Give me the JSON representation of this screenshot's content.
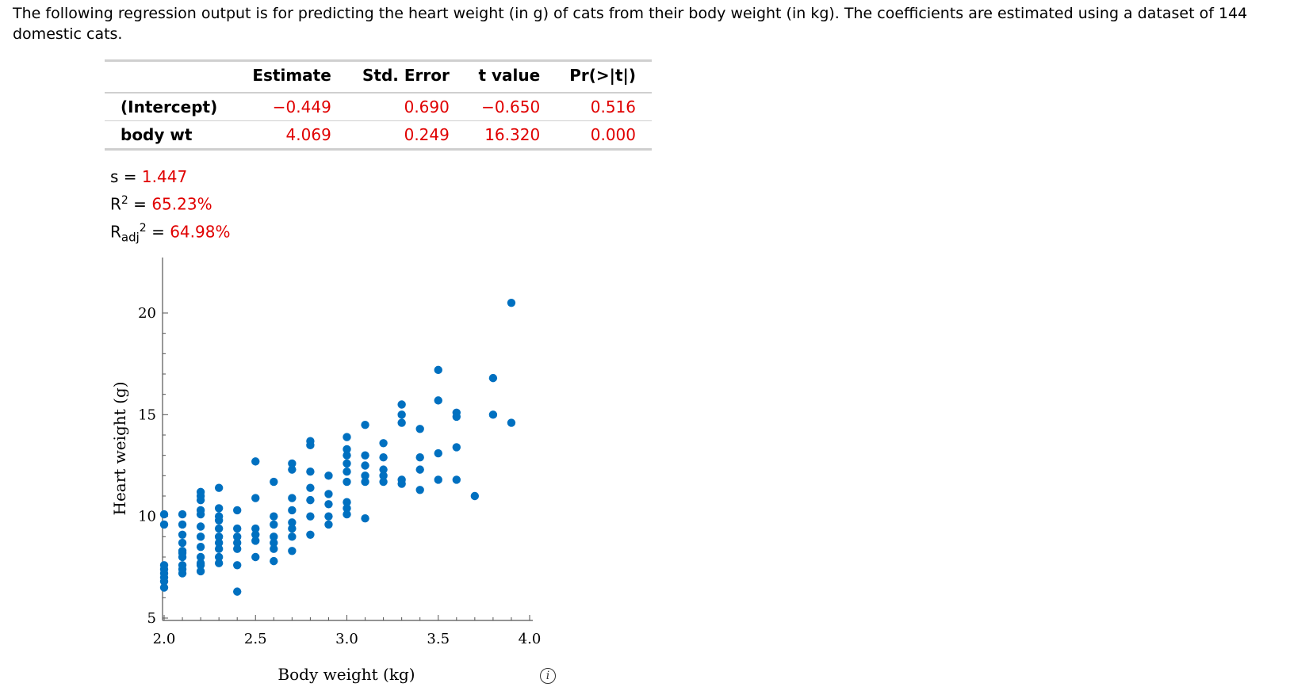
{
  "intro_text": "The following regression output is for predicting the heart weight (in g) of cats from their body weight (in kg). The coefficients are estimated using a dataset of 144 domestic cats.",
  "regression_table": {
    "headers": [
      "",
      "Estimate",
      "Std. Error",
      "t value",
      "Pr(>|t|)"
    ],
    "rows": [
      {
        "label": "(Intercept)",
        "estimate": "−0.449",
        "std_error": "0.690",
        "t_value": "−0.650",
        "p_value": "0.516"
      },
      {
        "label": "body wt",
        "estimate": "4.069",
        "std_error": "0.249",
        "t_value": "16.320",
        "p_value": "0.000"
      }
    ]
  },
  "stats": {
    "s_label": "s = ",
    "s_value": "1.447",
    "r2_label": "R",
    "r2_value": "65.23%",
    "radj_label": "R",
    "radj_sub": "adj",
    "radj_value": "64.98%",
    "equals": " = "
  },
  "colors": {
    "point": "#0070c0",
    "highlight": "#e00000"
  },
  "icon": "info-icon",
  "chart_data": {
    "type": "scatter",
    "xlabel": "Body weight (kg)",
    "ylabel": "Heart weight (g)",
    "xlim": [
      2.0,
      4.0
    ],
    "ylim": [
      5,
      20
    ],
    "xticks": [
      "2.0",
      "2.5",
      "3.0",
      "3.5",
      "4.0"
    ],
    "yticks": [
      "5",
      "10",
      "15",
      "20"
    ],
    "points": [
      [
        2.0,
        7.0
      ],
      [
        2.0,
        7.2
      ],
      [
        2.0,
        7.4
      ],
      [
        2.0,
        6.5
      ],
      [
        2.0,
        6.8
      ],
      [
        2.0,
        7.6
      ],
      [
        2.0,
        9.6
      ],
      [
        2.0,
        10.1
      ],
      [
        2.1,
        7.2
      ],
      [
        2.1,
        7.4
      ],
      [
        2.1,
        7.6
      ],
      [
        2.1,
        8.0
      ],
      [
        2.1,
        8.2
      ],
      [
        2.1,
        8.3
      ],
      [
        2.1,
        8.7
      ],
      [
        2.1,
        9.1
      ],
      [
        2.1,
        9.6
      ],
      [
        2.1,
        10.1
      ],
      [
        2.2,
        7.3
      ],
      [
        2.2,
        7.6
      ],
      [
        2.2,
        7.7
      ],
      [
        2.2,
        8.0
      ],
      [
        2.2,
        8.5
      ],
      [
        2.2,
        9.0
      ],
      [
        2.2,
        9.5
      ],
      [
        2.2,
        10.1
      ],
      [
        2.2,
        10.3
      ],
      [
        2.2,
        10.8
      ],
      [
        2.2,
        11.0
      ],
      [
        2.2,
        11.2
      ],
      [
        2.3,
        7.7
      ],
      [
        2.3,
        8.0
      ],
      [
        2.3,
        8.4
      ],
      [
        2.3,
        8.7
      ],
      [
        2.3,
        9.0
      ],
      [
        2.3,
        9.4
      ],
      [
        2.3,
        9.8
      ],
      [
        2.3,
        10.0
      ],
      [
        2.3,
        10.4
      ],
      [
        2.3,
        11.4
      ],
      [
        2.4,
        6.3
      ],
      [
        2.4,
        7.6
      ],
      [
        2.4,
        8.4
      ],
      [
        2.4,
        8.7
      ],
      [
        2.4,
        9.0
      ],
      [
        2.4,
        9.4
      ],
      [
        2.4,
        10.3
      ],
      [
        2.5,
        8.0
      ],
      [
        2.5,
        8.8
      ],
      [
        2.5,
        9.1
      ],
      [
        2.5,
        9.4
      ],
      [
        2.5,
        10.9
      ],
      [
        2.5,
        12.7
      ],
      [
        2.6,
        7.8
      ],
      [
        2.6,
        8.4
      ],
      [
        2.6,
        8.7
      ],
      [
        2.6,
        9.0
      ],
      [
        2.6,
        9.6
      ],
      [
        2.6,
        10.0
      ],
      [
        2.6,
        11.7
      ],
      [
        2.7,
        8.3
      ],
      [
        2.7,
        9.0
      ],
      [
        2.7,
        9.4
      ],
      [
        2.7,
        9.7
      ],
      [
        2.7,
        10.3
      ],
      [
        2.7,
        10.9
      ],
      [
        2.7,
        12.3
      ],
      [
        2.7,
        12.6
      ],
      [
        2.8,
        9.1
      ],
      [
        2.8,
        10.0
      ],
      [
        2.8,
        10.8
      ],
      [
        2.8,
        11.4
      ],
      [
        2.8,
        12.2
      ],
      [
        2.8,
        13.5
      ],
      [
        2.8,
        13.7
      ],
      [
        2.9,
        9.6
      ],
      [
        2.9,
        10.0
      ],
      [
        2.9,
        10.6
      ],
      [
        2.9,
        11.1
      ],
      [
        2.9,
        12.0
      ],
      [
        3.0,
        10.1
      ],
      [
        3.0,
        10.4
      ],
      [
        3.0,
        10.7
      ],
      [
        3.0,
        11.7
      ],
      [
        3.0,
        12.2
      ],
      [
        3.0,
        12.6
      ],
      [
        3.0,
        13.0
      ],
      [
        3.0,
        13.3
      ],
      [
        3.0,
        13.9
      ],
      [
        3.1,
        9.9
      ],
      [
        3.1,
        11.7
      ],
      [
        3.1,
        12.0
      ],
      [
        3.1,
        12.5
      ],
      [
        3.1,
        13.0
      ],
      [
        3.1,
        14.5
      ],
      [
        3.2,
        11.7
      ],
      [
        3.2,
        12.0
      ],
      [
        3.2,
        12.3
      ],
      [
        3.2,
        12.9
      ],
      [
        3.2,
        13.6
      ],
      [
        3.3,
        11.6
      ],
      [
        3.3,
        11.8
      ],
      [
        3.3,
        14.6
      ],
      [
        3.3,
        15.0
      ],
      [
        3.3,
        15.5
      ],
      [
        3.4,
        11.3
      ],
      [
        3.4,
        12.3
      ],
      [
        3.4,
        12.9
      ],
      [
        3.4,
        14.3
      ],
      [
        3.5,
        11.8
      ],
      [
        3.5,
        13.1
      ],
      [
        3.5,
        15.7
      ],
      [
        3.5,
        17.2
      ],
      [
        3.6,
        11.8
      ],
      [
        3.6,
        13.4
      ],
      [
        3.6,
        14.9
      ],
      [
        3.6,
        15.1
      ],
      [
        3.7,
        11.0
      ],
      [
        3.8,
        15.0
      ],
      [
        3.8,
        16.8
      ],
      [
        3.9,
        14.6
      ],
      [
        3.9,
        20.5
      ]
    ]
  }
}
